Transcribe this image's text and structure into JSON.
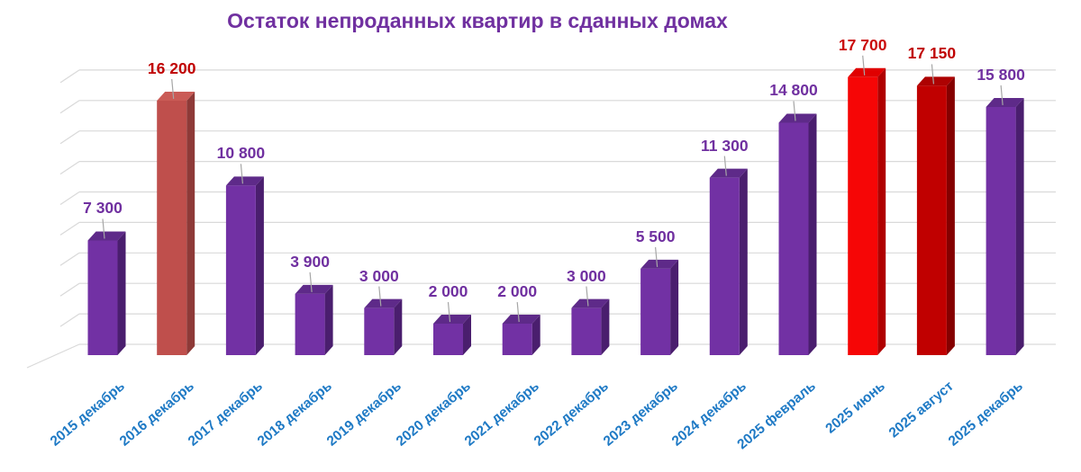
{
  "page": {
    "background": "#ffffff"
  },
  "chart_data": {
    "type": "bar",
    "variant": "3d-column",
    "title": "Остаток непроданных квартир в сданных домах",
    "title_color": "#7030a0",
    "xlabel": "",
    "ylabel": "",
    "legend": "none",
    "categories": [
      "2015 декабрь",
      "2016 декабрь",
      "2017 декабрь",
      "2018 декабрь",
      "2019 декабрь",
      "2020 декабрь",
      "2021 декабрь",
      "2022 декабрь",
      "2023 декабрь",
      "2024 декабрь",
      "2025 февраль",
      "2025 июнь",
      "2025 август",
      "2025 декабрь"
    ],
    "values": [
      7300,
      16200,
      10800,
      3900,
      3000,
      2000,
      2000,
      3000,
      5500,
      11300,
      14800,
      17700,
      17150,
      15800
    ],
    "data_labels": [
      "7 300",
      "16 200",
      "10 800",
      "3 900",
      "3 000",
      "2 000",
      "2 000",
      "3 000",
      "5 500",
      "11 300",
      "14 800",
      "17 700",
      "17 150",
      "15 800"
    ],
    "data_label_colors": [
      "#7030a0",
      "#c00000",
      "#7030a0",
      "#7030a0",
      "#7030a0",
      "#7030a0",
      "#7030a0",
      "#7030a0",
      "#7030a0",
      "#7030a0",
      "#7030a0",
      "#cb0a0a",
      "#c00000",
      "#7030a0"
    ],
    "bar_colors": [
      {
        "front": "#7231a4",
        "top": "#5e2a89",
        "side": "#4a1e6e"
      },
      {
        "front": "#bf4f4c",
        "top": "#ca5b56",
        "side": "#8e3a38"
      },
      {
        "front": "#7231a4",
        "top": "#5e2a89",
        "side": "#4a1e6e"
      },
      {
        "front": "#7231a4",
        "top": "#5e2a89",
        "side": "#4a1e6e"
      },
      {
        "front": "#7231a4",
        "top": "#5e2a89",
        "side": "#4a1e6e"
      },
      {
        "front": "#7231a4",
        "top": "#5e2a89",
        "side": "#4a1e6e"
      },
      {
        "front": "#7231a4",
        "top": "#5e2a89",
        "side": "#4a1e6e"
      },
      {
        "front": "#7231a4",
        "top": "#5e2a89",
        "side": "#4a1e6e"
      },
      {
        "front": "#7231a4",
        "top": "#5e2a89",
        "side": "#4a1e6e"
      },
      {
        "front": "#7231a4",
        "top": "#5e2a89",
        "side": "#4a1e6e"
      },
      {
        "front": "#7231a4",
        "top": "#5e2a89",
        "side": "#4a1e6e"
      },
      {
        "front": "#f60606",
        "top": "#e00000",
        "side": "#b00000"
      },
      {
        "front": "#c00000",
        "top": "#ad0202",
        "side": "#850000"
      },
      {
        "front": "#7231a4",
        "top": "#5e2a89",
        "side": "#4a1e6e"
      }
    ],
    "x_axis": {
      "label_color": "#1f7ac5",
      "label_rotation_deg": -40
    },
    "y_axis": {
      "min": 0,
      "max": 18000,
      "gridline_step": 2000,
      "gridline_color": "#d9d9d9",
      "tick_labels_visible": false
    },
    "leader_line_color": "#a6a6a6",
    "background": "#ffffff"
  }
}
